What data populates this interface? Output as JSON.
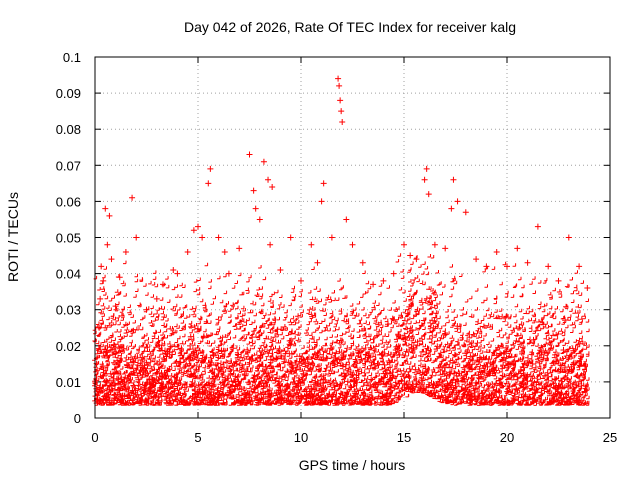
{
  "chart_data": {
    "type": "scatter",
    "title": "Day 042 of 2026, Rate Of TEC Index for receiver kalg",
    "xlabel": "GPS time / hours",
    "ylabel": "ROTI / TECUs",
    "xlim": [
      0,
      25
    ],
    "ylim": [
      0,
      0.1
    ],
    "xticks": [
      "0",
      "5",
      "10",
      "15",
      "20",
      "25"
    ],
    "yticks": [
      "0",
      "0.01",
      "0.02",
      "0.03",
      "0.04",
      "0.05",
      "0.06",
      "0.07",
      "0.08",
      "0.09",
      "0.1"
    ],
    "grid": true,
    "marker": "+",
    "color": "#ff0000",
    "series": [
      {
        "points": [
          [
            0.1,
            0.005
          ],
          [
            0.2,
            0.025
          ],
          [
            0.25,
            0.033
          ],
          [
            0.3,
            0.042
          ],
          [
            0.4,
            0.038
          ],
          [
            0.5,
            0.058
          ],
          [
            0.6,
            0.048
          ],
          [
            0.7,
            0.056
          ],
          [
            0.8,
            0.044
          ],
          [
            1.0,
            0.031
          ],
          [
            1.2,
            0.039
          ],
          [
            1.5,
            0.046
          ],
          [
            1.8,
            0.061
          ],
          [
            2.0,
            0.05
          ],
          [
            2.5,
            0.03
          ],
          [
            3.0,
            0.033
          ],
          [
            3.3,
            0.037
          ],
          [
            3.8,
            0.041
          ],
          [
            4.0,
            0.04
          ],
          [
            4.5,
            0.046
          ],
          [
            4.8,
            0.052
          ],
          [
            5.0,
            0.053
          ],
          [
            5.2,
            0.05
          ],
          [
            5.5,
            0.065
          ],
          [
            5.6,
            0.069
          ],
          [
            6.0,
            0.05
          ],
          [
            6.3,
            0.046
          ],
          [
            6.5,
            0.04
          ],
          [
            7.0,
            0.047
          ],
          [
            7.5,
            0.073
          ],
          [
            7.7,
            0.063
          ],
          [
            7.8,
            0.058
          ],
          [
            8.0,
            0.055
          ],
          [
            8.2,
            0.071
          ],
          [
            8.4,
            0.066
          ],
          [
            8.6,
            0.064
          ],
          [
            8.5,
            0.048
          ],
          [
            9.0,
            0.041
          ],
          [
            9.5,
            0.05
          ],
          [
            10.0,
            0.038
          ],
          [
            10.5,
            0.048
          ],
          [
            10.8,
            0.043
          ],
          [
            11.0,
            0.06
          ],
          [
            11.1,
            0.065
          ],
          [
            11.5,
            0.05
          ],
          [
            11.8,
            0.094
          ],
          [
            11.85,
            0.092
          ],
          [
            11.9,
            0.088
          ],
          [
            11.95,
            0.085
          ],
          [
            12.0,
            0.082
          ],
          [
            12.2,
            0.055
          ],
          [
            12.5,
            0.048
          ],
          [
            13.0,
            0.043
          ],
          [
            13.5,
            0.037
          ],
          [
            14.0,
            0.038
          ],
          [
            14.5,
            0.04
          ],
          [
            15.0,
            0.048
          ],
          [
            15.3,
            0.045
          ],
          [
            15.6,
            0.044
          ],
          [
            16.0,
            0.066
          ],
          [
            16.1,
            0.069
          ],
          [
            16.2,
            0.062
          ],
          [
            16.5,
            0.048
          ],
          [
            17.0,
            0.047
          ],
          [
            17.3,
            0.058
          ],
          [
            17.4,
            0.066
          ],
          [
            17.6,
            0.06
          ],
          [
            18.0,
            0.057
          ],
          [
            18.5,
            0.044
          ],
          [
            19.0,
            0.042
          ],
          [
            19.5,
            0.046
          ],
          [
            20.0,
            0.042
          ],
          [
            20.5,
            0.047
          ],
          [
            21.0,
            0.043
          ],
          [
            21.5,
            0.053
          ],
          [
            22.0,
            0.042
          ],
          [
            22.5,
            0.038
          ],
          [
            23.0,
            0.05
          ],
          [
            23.5,
            0.042
          ],
          [
            23.9,
            0.036
          ]
        ]
      }
    ]
  }
}
